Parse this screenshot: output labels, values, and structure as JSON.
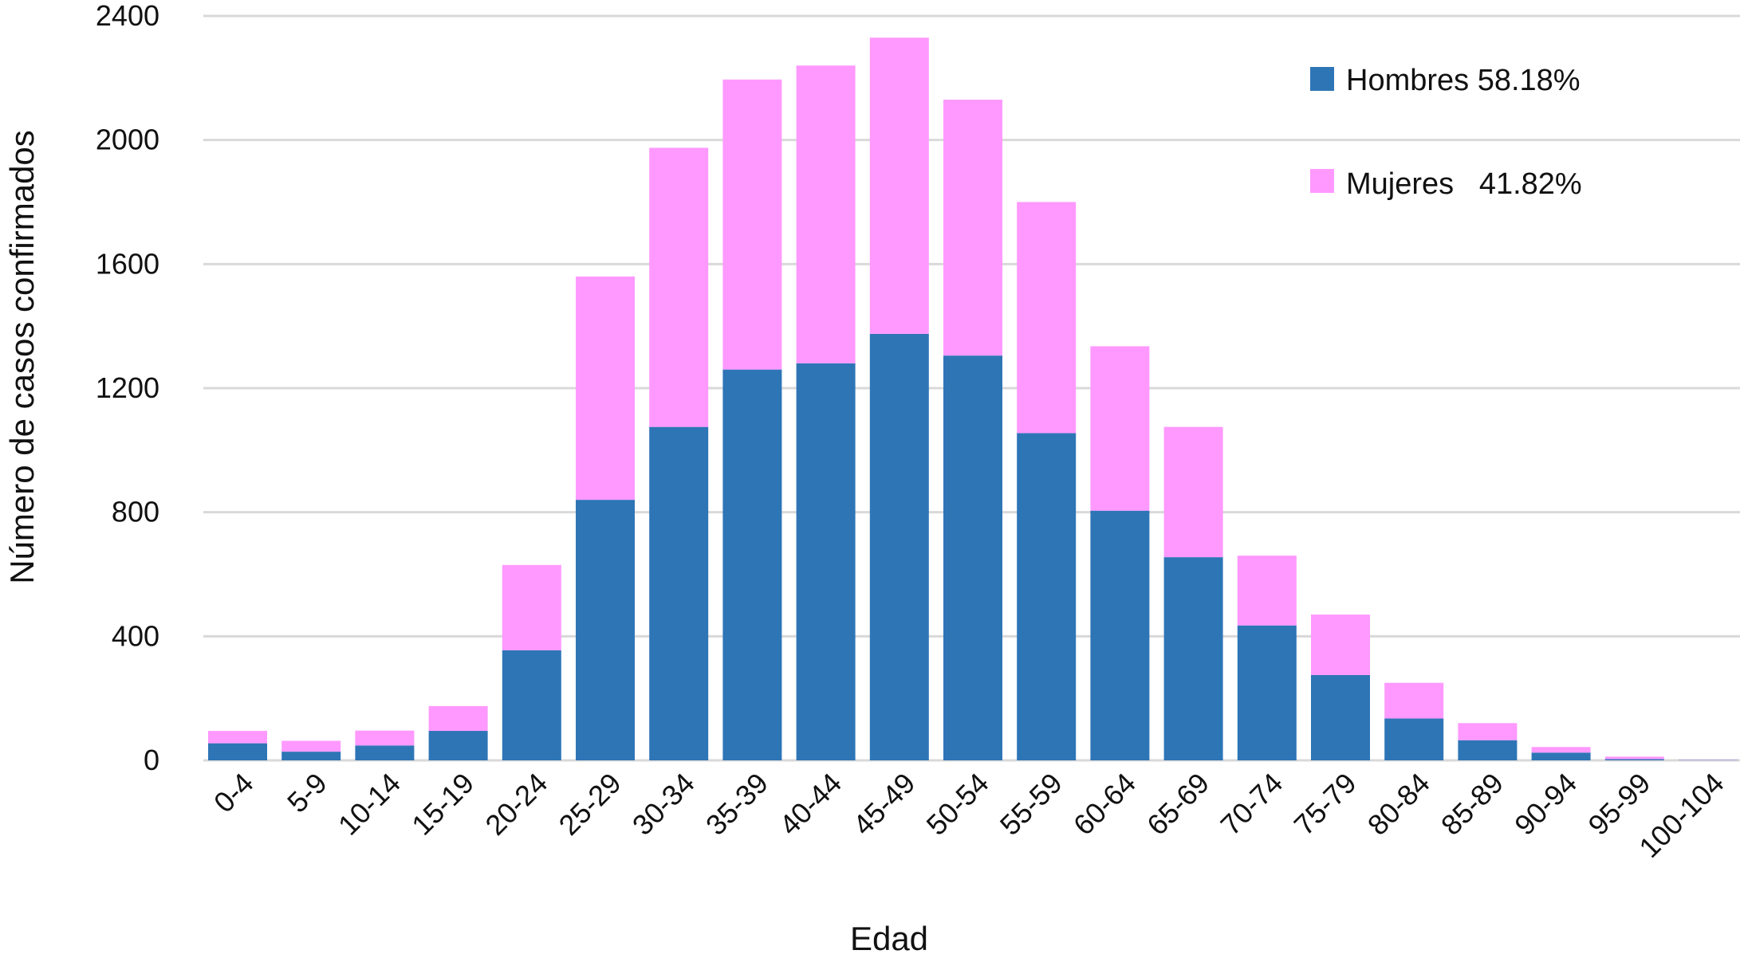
{
  "chart_data": {
    "type": "bar",
    "stacked": true,
    "xlabel": "Edad",
    "ylabel": "Número de casos confirmados",
    "ylim": [
      0,
      2400
    ],
    "yticks": [
      0,
      400,
      800,
      1200,
      1600,
      2000,
      2400
    ],
    "grid": true,
    "legend_position": "top-right",
    "categories": [
      "0-4",
      "5-9",
      "10-14",
      "15-19",
      "20-24",
      "25-29",
      "30-34",
      "35-39",
      "40-44",
      "45-49",
      "50-54",
      "55-59",
      "60-64",
      "65-69",
      "70-74",
      "75-79",
      "80-84",
      "85-89",
      "90-94",
      "95-99",
      "100-104"
    ],
    "series": [
      {
        "name": "Hombres",
        "legend_label": "Hombres 58.18%",
        "color": "#2e75b6",
        "values": [
          55,
          28,
          48,
          95,
          355,
          840,
          1075,
          1260,
          1280,
          1375,
          1305,
          1055,
          805,
          655,
          435,
          275,
          135,
          65,
          25,
          4,
          1
        ]
      },
      {
        "name": "Mujeres",
        "legend_label": "Mujeres   41.82%",
        "color": "#ff99ff",
        "values": [
          40,
          35,
          48,
          80,
          275,
          720,
          900,
          935,
          960,
          955,
          825,
          745,
          530,
          420,
          225,
          195,
          115,
          55,
          18,
          8,
          1
        ]
      }
    ]
  }
}
